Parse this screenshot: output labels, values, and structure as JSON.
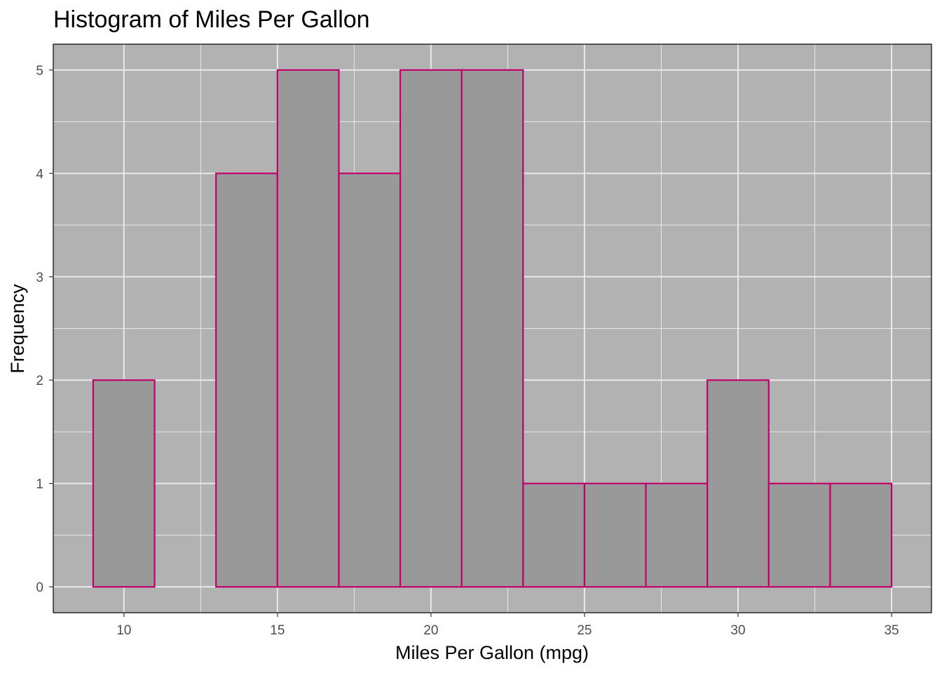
{
  "chart_data": {
    "type": "bar",
    "title": "Histogram of Miles Per Gallon",
    "xlabel": "Miles Per Gallon (mpg)",
    "ylabel": "Frequency",
    "bins": [
      {
        "x0": 9,
        "x1": 11,
        "count": 2
      },
      {
        "x0": 11,
        "x1": 13,
        "count": 0
      },
      {
        "x0": 13,
        "x1": 15,
        "count": 4
      },
      {
        "x0": 15,
        "x1": 17,
        "count": 5
      },
      {
        "x0": 17,
        "x1": 19,
        "count": 4
      },
      {
        "x0": 19,
        "x1": 21,
        "count": 5
      },
      {
        "x0": 21,
        "x1": 23,
        "count": 5
      },
      {
        "x0": 23,
        "x1": 25,
        "count": 1
      },
      {
        "x0": 25,
        "x1": 27,
        "count": 1
      },
      {
        "x0": 27,
        "x1": 29,
        "count": 1
      },
      {
        "x0": 29,
        "x1": 31,
        "count": 2
      },
      {
        "x0": 31,
        "x1": 33,
        "count": 1
      },
      {
        "x0": 33,
        "x1": 35,
        "count": 1
      }
    ],
    "xlim": [
      7.7,
      36.3
    ],
    "ylim": [
      -0.25,
      5.25
    ],
    "xticks": [
      10,
      15,
      20,
      25,
      30,
      35
    ],
    "yticks": [
      0,
      1,
      2,
      3,
      4,
      5
    ],
    "grid": true,
    "colors": {
      "panel_background": "#b2b2b2",
      "bar_fill": "#999999",
      "bar_outline": "#c0006b",
      "grid": "#e8e8e8",
      "tick_text": "#4d4d4d"
    }
  }
}
